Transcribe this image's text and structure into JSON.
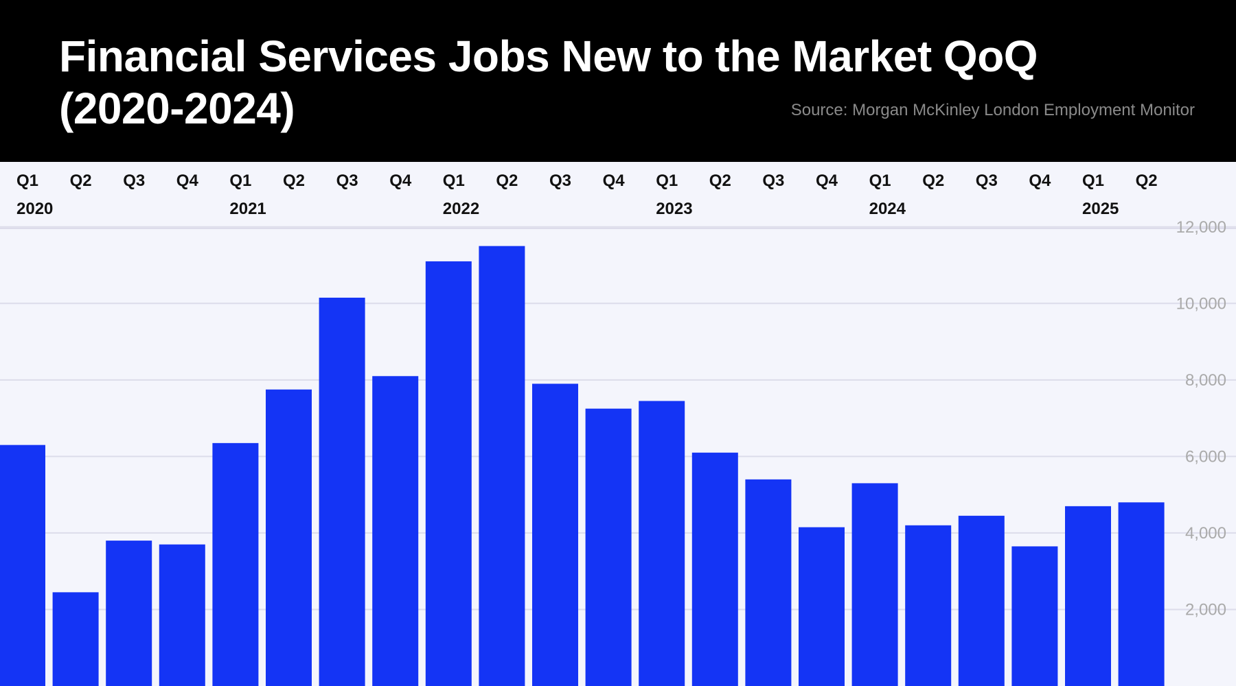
{
  "header": {
    "title": "Financial Services Jobs New to the Market QoQ (2020-2024)",
    "source": "Source: Morgan McKinley London Employment Monitor",
    "background_color": "#000000"
  },
  "chart_data": {
    "type": "bar",
    "title": "Financial Services Jobs New to the Market QoQ (2020-2024)",
    "xlabel": "",
    "ylabel": "",
    "categories": [
      {
        "quarter": "Q1",
        "year": "2020"
      },
      {
        "quarter": "Q2",
        "year": ""
      },
      {
        "quarter": "Q3",
        "year": ""
      },
      {
        "quarter": "Q4",
        "year": ""
      },
      {
        "quarter": "Q1",
        "year": "2021"
      },
      {
        "quarter": "Q2",
        "year": ""
      },
      {
        "quarter": "Q3",
        "year": ""
      },
      {
        "quarter": "Q4",
        "year": ""
      },
      {
        "quarter": "Q1",
        "year": "2022"
      },
      {
        "quarter": "Q2",
        "year": ""
      },
      {
        "quarter": "Q3",
        "year": ""
      },
      {
        "quarter": "Q4",
        "year": ""
      },
      {
        "quarter": "Q1",
        "year": "2023"
      },
      {
        "quarter": "Q2",
        "year": ""
      },
      {
        "quarter": "Q3",
        "year": ""
      },
      {
        "quarter": "Q4",
        "year": ""
      },
      {
        "quarter": "Q1",
        "year": "2024"
      },
      {
        "quarter": "Q2",
        "year": ""
      },
      {
        "quarter": "Q3",
        "year": ""
      },
      {
        "quarter": "Q4",
        "year": ""
      },
      {
        "quarter": "Q1",
        "year": "2025"
      },
      {
        "quarter": "Q2",
        "year": ""
      }
    ],
    "values": [
      6300,
      2450,
      3800,
      3700,
      6350,
      7750,
      10150,
      8100,
      11100,
      11500,
      7900,
      7250,
      7450,
      6100,
      5400,
      4150,
      5300,
      4200,
      4450,
      3650,
      4700,
      4800
    ],
    "ylim": [
      0,
      12000
    ],
    "yticks": [
      {
        "value": 2000,
        "label": "2,000"
      },
      {
        "value": 4000,
        "label": "4,000"
      },
      {
        "value": 6000,
        "label": "6,000"
      },
      {
        "value": 8000,
        "label": "8,000"
      },
      {
        "value": 10000,
        "label": "10,000"
      },
      {
        "value": 12000,
        "label": "12,000"
      }
    ],
    "grid": true,
    "x_axis_position": "top",
    "y_axis_position": "right",
    "colors": {
      "bar": "#1434f5",
      "grid": "#dcdcea",
      "tick_label": "#aaaaaa",
      "category_label": "#111111",
      "plot_background": "#f4f5fc"
    }
  }
}
